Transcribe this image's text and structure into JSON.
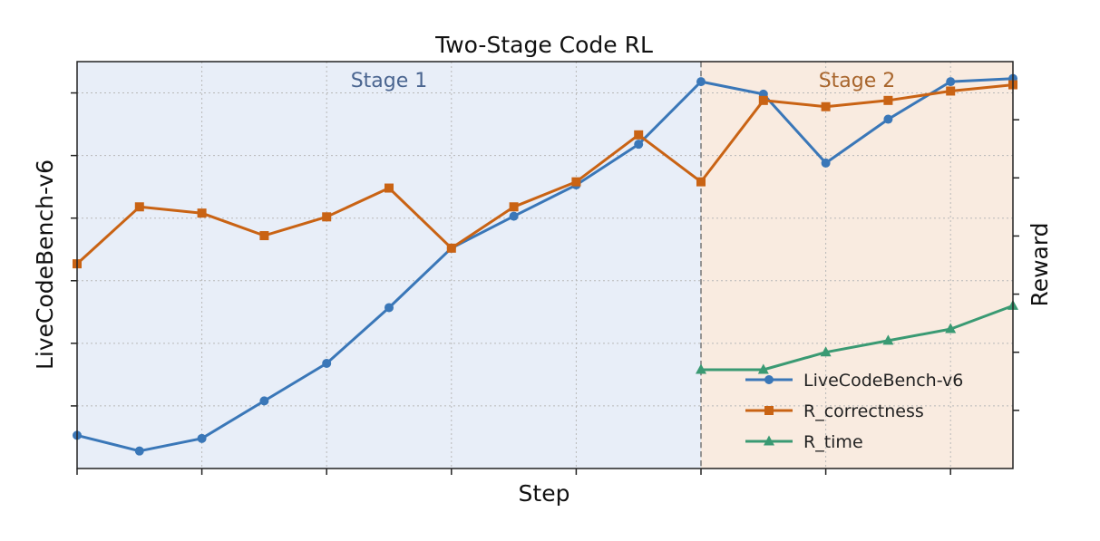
{
  "chart_data": {
    "type": "line",
    "title": "Two-Stage Code RL",
    "xlabel": "Step",
    "ylabel_left": "LiveCodeBench-v6",
    "ylabel_right": "Reward",
    "x": [
      0,
      1,
      2,
      3,
      4,
      5,
      6,
      7,
      8,
      9,
      10,
      11,
      12,
      13,
      14,
      15
    ],
    "xlim": [
      0,
      15
    ],
    "ylim_left": [
      0,
      6.5
    ],
    "ylim_right": [
      0,
      7
    ],
    "stage_boundary": 10,
    "stages": [
      {
        "label": "Stage 1",
        "from": 0,
        "to": 10,
        "color": "#e8eef8",
        "text_color": "#4a6590"
      },
      {
        "label": "Stage 2",
        "from": 10,
        "to": 15,
        "color": "#f9ebe0",
        "text_color": "#a8652c"
      }
    ],
    "series": [
      {
        "name": "LiveCodeBench-v6",
        "axis": "left",
        "color": "#3a77b8",
        "marker": "circle",
        "x": [
          0,
          1,
          2,
          3,
          4,
          5,
          6,
          7,
          8,
          9,
          10,
          11,
          12,
          13,
          14,
          15
        ],
        "values": [
          0.53,
          0.28,
          0.48,
          1.08,
          1.68,
          2.57,
          3.52,
          4.03,
          4.53,
          5.18,
          6.18,
          5.98,
          4.88,
          5.58,
          6.18,
          6.23
        ]
      },
      {
        "name": "R_correctness",
        "axis": "left",
        "color": "#c96314",
        "marker": "square",
        "x": [
          0,
          1,
          2,
          3,
          4,
          5,
          6,
          7,
          8,
          9,
          10,
          11,
          12,
          13,
          14,
          15
        ],
        "values": [
          3.27,
          4.18,
          4.08,
          3.72,
          4.02,
          4.48,
          3.52,
          4.18,
          4.58,
          5.33,
          4.58,
          5.88,
          5.78,
          5.88,
          6.03,
          6.13
        ]
      },
      {
        "name": "R_time",
        "axis": "right",
        "color": "#3a9a73",
        "marker": "triangle",
        "x": [
          10,
          11,
          12,
          13,
          14,
          15
        ],
        "values": [
          1.7,
          1.7,
          2.0,
          2.2,
          2.4,
          2.8
        ]
      }
    ],
    "legend": {
      "position": "lower-right"
    },
    "grid": true
  }
}
